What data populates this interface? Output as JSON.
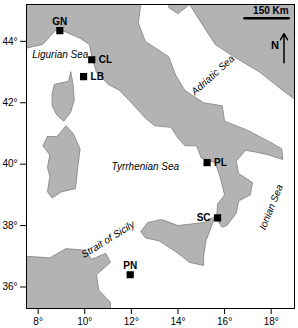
{
  "chart_data": {
    "type": "map",
    "xlim": [
      7.5,
      19
    ],
    "ylim": [
      35.3,
      45.2
    ],
    "xticks": [
      {
        "value": 8,
        "label": "8°"
      },
      {
        "value": 10,
        "label": "10°"
      },
      {
        "value": 12,
        "label": "12°"
      },
      {
        "value": 14,
        "label": "14°"
      },
      {
        "value": 16,
        "label": "16°"
      },
      {
        "value": 18,
        "label": "18°"
      }
    ],
    "yticks": [
      {
        "value": 36,
        "label": "36°"
      },
      {
        "value": 38,
        "label": "38°"
      },
      {
        "value": 40,
        "label": "40°"
      },
      {
        "value": 42,
        "label": "42°"
      },
      {
        "value": 44,
        "label": "44°"
      }
    ],
    "color": "#b3b3b3",
    "marker": "square",
    "land": [
      [
        [
          6.5,
          43.3
        ],
        [
          7.0,
          43.5
        ],
        [
          7.5,
          43.78
        ],
        [
          8.2,
          43.9
        ],
        [
          8.8,
          44.4
        ],
        [
          9.2,
          44.3
        ],
        [
          9.8,
          44.1
        ],
        [
          10.2,
          43.9
        ],
        [
          10.3,
          43.5
        ],
        [
          10.5,
          43.0
        ],
        [
          11.0,
          42.6
        ],
        [
          11.5,
          42.4
        ],
        [
          12.0,
          42.0
        ],
        [
          12.6,
          41.5
        ],
        [
          13.0,
          41.25
        ],
        [
          13.7,
          41.2
        ],
        [
          14.0,
          40.85
        ],
        [
          14.3,
          40.6
        ],
        [
          14.8,
          40.6
        ],
        [
          15.0,
          40.2
        ],
        [
          15.6,
          40.05
        ],
        [
          15.8,
          39.6
        ],
        [
          16.0,
          39.0
        ],
        [
          15.7,
          38.7
        ],
        [
          15.65,
          38.2
        ],
        [
          15.9,
          37.95
        ],
        [
          16.1,
          38.0
        ],
        [
          16.5,
          38.4
        ],
        [
          16.6,
          38.8
        ],
        [
          17.1,
          39.0
        ],
        [
          17.2,
          39.4
        ],
        [
          16.6,
          39.7
        ],
        [
          16.5,
          40.1
        ],
        [
          16.9,
          40.45
        ],
        [
          17.3,
          40.4
        ],
        [
          17.9,
          40.3
        ],
        [
          18.5,
          40.15
        ],
        [
          18.45,
          40.5
        ],
        [
          18.0,
          40.7
        ],
        [
          17.0,
          41.1
        ],
        [
          16.0,
          41.4
        ],
        [
          15.9,
          41.9
        ],
        [
          15.1,
          42.0
        ],
        [
          14.3,
          42.4
        ],
        [
          13.9,
          42.9
        ],
        [
          13.6,
          43.5
        ],
        [
          12.6,
          44.0
        ],
        [
          12.3,
          44.6
        ],
        [
          12.4,
          45.2
        ],
        [
          13.1,
          45.7
        ],
        [
          13.7,
          45.6
        ],
        [
          13.6,
          45.1
        ],
        [
          14.0,
          44.9
        ],
        [
          14.5,
          45.2
        ],
        [
          15.0,
          44.6
        ],
        [
          15.6,
          43.9
        ],
        [
          16.4,
          43.5
        ],
        [
          17.5,
          43.0
        ],
        [
          18.5,
          42.4
        ],
        [
          19.4,
          41.9
        ],
        [
          19.5,
          41.0
        ],
        [
          19.4,
          40.2
        ],
        [
          20.0,
          40.0
        ],
        [
          20.0,
          46.0
        ],
        [
          6.5,
          46.0
        ]
      ],
      [
        [
          12.4,
          37.8
        ],
        [
          12.7,
          38.1
        ],
        [
          13.3,
          38.2
        ],
        [
          14.0,
          38.0
        ],
        [
          15.1,
          38.1
        ],
        [
          15.6,
          38.3
        ],
        [
          15.2,
          37.5
        ],
        [
          15.1,
          37.0
        ],
        [
          15.1,
          36.7
        ],
        [
          14.5,
          36.8
        ],
        [
          14.0,
          37.1
        ],
        [
          13.2,
          37.5
        ],
        [
          12.6,
          37.6
        ]
      ],
      [
        [
          8.4,
          40.9
        ],
        [
          8.2,
          40.6
        ],
        [
          8.5,
          40.3
        ],
        [
          8.4,
          39.9
        ],
        [
          8.5,
          39.6
        ],
        [
          8.4,
          39.1
        ],
        [
          8.6,
          38.9
        ],
        [
          9.0,
          39.1
        ],
        [
          9.6,
          39.2
        ],
        [
          9.7,
          39.9
        ],
        [
          9.8,
          40.5
        ],
        [
          9.5,
          41.0
        ],
        [
          9.2,
          41.25
        ],
        [
          8.8,
          40.9
        ]
      ],
      [
        [
          9.4,
          43.0
        ],
        [
          9.5,
          42.6
        ],
        [
          9.55,
          42.1
        ],
        [
          9.4,
          41.7
        ],
        [
          9.1,
          41.4
        ],
        [
          8.8,
          41.6
        ],
        [
          8.6,
          41.9
        ],
        [
          8.6,
          42.3
        ],
        [
          8.7,
          42.6
        ],
        [
          9.3,
          42.7
        ]
      ],
      [
        [
          6.5,
          37.1
        ],
        [
          7.5,
          37.0
        ],
        [
          8.5,
          36.95
        ],
        [
          9.2,
          37.25
        ],
        [
          10.0,
          37.2
        ],
        [
          10.3,
          36.9
        ],
        [
          10.9,
          37.1
        ],
        [
          11.1,
          36.8
        ],
        [
          10.5,
          36.4
        ],
        [
          10.6,
          35.9
        ],
        [
          11.1,
          35.5
        ],
        [
          11.1,
          35.2
        ],
        [
          6.5,
          35.2
        ]
      ]
    ],
    "sites": {
      "names": [
        "GN",
        "CL",
        "LB",
        "PL",
        "SC",
        "PN"
      ],
      "lon": [
        8.93,
        10.3,
        9.95,
        15.25,
        15.7,
        11.95
      ],
      "lat": [
        44.35,
        43.4,
        42.85,
        40.05,
        38.25,
        36.4
      ]
    },
    "annotations": [
      {
        "text": "Ligurian Sea",
        "lon": 8.95,
        "lat": 43.55
      },
      {
        "text": "Adriatic Sea",
        "lon": 15.5,
        "lat": 42.9
      },
      {
        "text": "Tyrrhenian Sea",
        "lon": 12.6,
        "lat": 39.9
      },
      {
        "text": "Ionian Sea",
        "lon": 18.0,
        "lat": 38.6
      },
      {
        "text": "Strait of Sicily",
        "lon": 11.0,
        "lat": 37.55
      }
    ],
    "scale_bar": {
      "label": "150 Km",
      "km": 150
    },
    "north_arrow": "N"
  }
}
